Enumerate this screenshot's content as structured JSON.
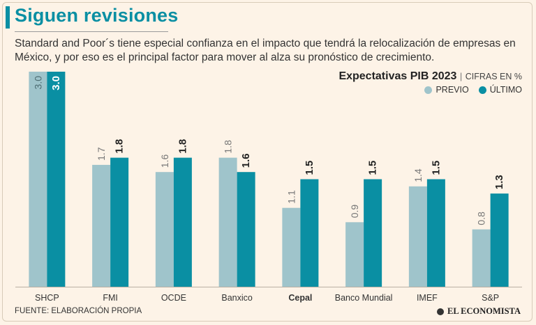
{
  "header": {
    "title": "Siguen revisiones",
    "subtitle": "Standard and Poor´s tiene especial confianza en el impacto que tendrá la relocalización de empresas en México, y por eso es el principal factor para mover al alza su pronóstico de crecimiento."
  },
  "chart_header": {
    "main": "Expectativas PIB 2023",
    "separator": "|",
    "unit": "CIFRAS EN %"
  },
  "footer": {
    "source": "FUENTE: ELABORACIÓN PROPIA",
    "brand": "EL ECONOMISTA"
  },
  "colors": {
    "previo": "#9fc4cb",
    "ultimo": "#0a8fa3",
    "accent": "#0a8fa3"
  },
  "chart_data": {
    "type": "bar",
    "title": "Expectativas PIB 2023",
    "unit": "CIFRAS EN %",
    "categories": [
      "SHCP",
      "FMI",
      "OCDE",
      "Banxico",
      "Cepal",
      "Banco Mundial",
      "IMEF",
      "S&P"
    ],
    "highlighted_category": "Cepal",
    "series": [
      {
        "name": "PREVIO",
        "values": [
          3.0,
          1.7,
          1.6,
          1.8,
          1.1,
          0.9,
          1.4,
          0.8
        ],
        "labels": [
          "3.0",
          "1.7",
          "1.6",
          "1.8",
          "1.1",
          "0.9",
          "1.4",
          "0.8"
        ]
      },
      {
        "name": "ÚLTIMO",
        "values": [
          3.0,
          1.8,
          1.8,
          1.6,
          1.5,
          1.5,
          1.5,
          1.3
        ],
        "labels": [
          "3.0",
          "1.8",
          "1.8",
          "1.6",
          "1.5",
          "1.5",
          "1.5",
          "1.3"
        ]
      }
    ],
    "ylim": [
      0,
      3.0
    ],
    "legend": "top-right",
    "grid": false
  }
}
